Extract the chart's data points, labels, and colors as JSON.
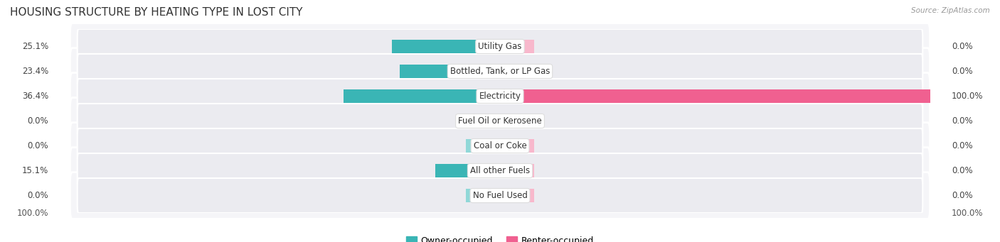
{
  "title": "HOUSING STRUCTURE BY HEATING TYPE IN LOST CITY",
  "source": "Source: ZipAtlas.com",
  "categories": [
    "Utility Gas",
    "Bottled, Tank, or LP Gas",
    "Electricity",
    "Fuel Oil or Kerosene",
    "Coal or Coke",
    "All other Fuels",
    "No Fuel Used"
  ],
  "owner_values": [
    25.1,
    23.4,
    36.4,
    0.0,
    0.0,
    15.1,
    0.0
  ],
  "renter_values": [
    0.0,
    0.0,
    100.0,
    0.0,
    0.0,
    0.0,
    0.0
  ],
  "owner_color": "#3ab5b5",
  "renter_color": "#f06090",
  "owner_color_light": "#90d8d8",
  "renter_color_light": "#f8b8cc",
  "row_bg_color": "#ebebf0",
  "row_bg_outer": "#f5f5f8",
  "max_value": 100.0,
  "stub_size": 8.0,
  "title_fontsize": 11,
  "label_fontsize": 8.5,
  "tick_fontsize": 8.5,
  "legend_fontsize": 9
}
